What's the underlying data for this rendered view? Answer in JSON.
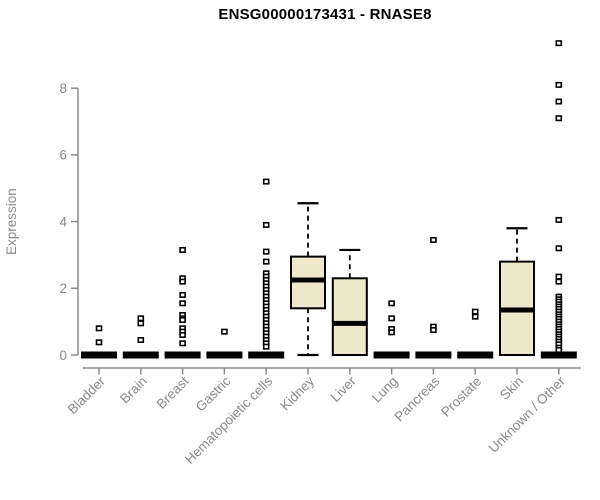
{
  "chart_data": {
    "type": "boxplot",
    "title": "ENSG00000173431 - RNASE8",
    "ylabel": "Expression",
    "xlabel": "",
    "yticks": [
      0,
      2,
      4,
      6,
      8
    ],
    "ylim": [
      0,
      9.5
    ],
    "grid": false,
    "legend": "none",
    "categories": [
      "Bladder",
      "Brain",
      "Breast",
      "Gastric",
      "Hematopoietic cells",
      "Kidney",
      "Liver",
      "Lung",
      "Pancreas",
      "Prostate",
      "Skin",
      "Unknown / Other"
    ],
    "series": [
      {
        "category": "Bladder",
        "whisker_low": 0,
        "q1": 0,
        "median": 0,
        "q3": 0,
        "whisker_high": 0,
        "outliers": [
          0.8,
          0.38
        ]
      },
      {
        "category": "Brain",
        "whisker_low": 0,
        "q1": 0,
        "median": 0,
        "q3": 0,
        "whisker_high": 0,
        "outliers": [
          1.1,
          0.95,
          0.45
        ]
      },
      {
        "category": "Breast",
        "whisker_low": 0,
        "q1": 0,
        "median": 0,
        "q3": 0,
        "whisker_high": 0,
        "outliers": [
          3.15,
          2.3,
          2.2,
          1.8,
          1.55,
          1.2,
          1.1,
          1.05,
          0.8,
          0.7,
          0.6,
          0.35
        ]
      },
      {
        "category": "Gastric",
        "whisker_low": 0,
        "q1": 0,
        "median": 0,
        "q3": 0,
        "whisker_high": 0,
        "outliers": [
          0.7
        ]
      },
      {
        "category": "Hematopoietic cells",
        "whisker_low": 0,
        "q1": 0,
        "median": 0,
        "q3": 0,
        "whisker_high": 0,
        "outliers": [
          5.2,
          3.9,
          3.1,
          2.8,
          2.45,
          2.35,
          2.25,
          2.15,
          2.05,
          1.95,
          1.85,
          1.75,
          1.65,
          1.55,
          1.45,
          1.35,
          1.25,
          1.15,
          1.05,
          0.95,
          0.85,
          0.75,
          0.65,
          0.55,
          0.45,
          0.35,
          0.25
        ]
      },
      {
        "category": "Kidney",
        "whisker_low": 0,
        "q1": 1.4,
        "median": 2.25,
        "q3": 2.95,
        "whisker_high": 4.55,
        "outliers": []
      },
      {
        "category": "Liver",
        "whisker_low": 0,
        "q1": 0,
        "median": 0.95,
        "q3": 2.3,
        "whisker_high": 3.15,
        "outliers": []
      },
      {
        "category": "Lung",
        "whisker_low": 0,
        "q1": 0,
        "median": 0,
        "q3": 0,
        "whisker_high": 0,
        "outliers": [
          1.55,
          1.1,
          0.78,
          0.68
        ]
      },
      {
        "category": "Pancreas",
        "whisker_low": 0,
        "q1": 0,
        "median": 0,
        "q3": 0,
        "whisker_high": 0,
        "outliers": [
          3.45,
          0.85,
          0.75
        ]
      },
      {
        "category": "Prostate",
        "whisker_low": 0,
        "q1": 0,
        "median": 0,
        "q3": 0,
        "whisker_high": 0,
        "outliers": [
          1.3,
          1.15
        ]
      },
      {
        "category": "Skin",
        "whisker_low": 0,
        "q1": 0,
        "median": 1.35,
        "q3": 2.8,
        "whisker_high": 3.8,
        "outliers": []
      },
      {
        "category": "Unknown / Other",
        "whisker_low": 0,
        "q1": 0,
        "median": 0,
        "q3": 0,
        "whisker_high": 0,
        "outliers": [
          9.35,
          8.1,
          7.6,
          7.1,
          4.05,
          3.2,
          2.35,
          2.2,
          1.75,
          1.67,
          1.6,
          1.52,
          1.45,
          1.38,
          1.3,
          1.22,
          1.15,
          1.08,
          1.0,
          0.92,
          0.85,
          0.78,
          0.7,
          0.62,
          0.55,
          0.48,
          0.4,
          0.32,
          0.22,
          0.15
        ]
      }
    ],
    "style": {
      "box_fill": "#EEE8CD",
      "box_stroke": "#000000",
      "median_color": "#000000",
      "zero_bar_color": "#000000",
      "outlier_fill": "#ffffff",
      "outlier_stroke": "#000000",
      "axis_color": "#8a8a8a",
      "label_color": "#8a8a8a",
      "title_color": "#000000",
      "background": "#ffffff"
    }
  }
}
